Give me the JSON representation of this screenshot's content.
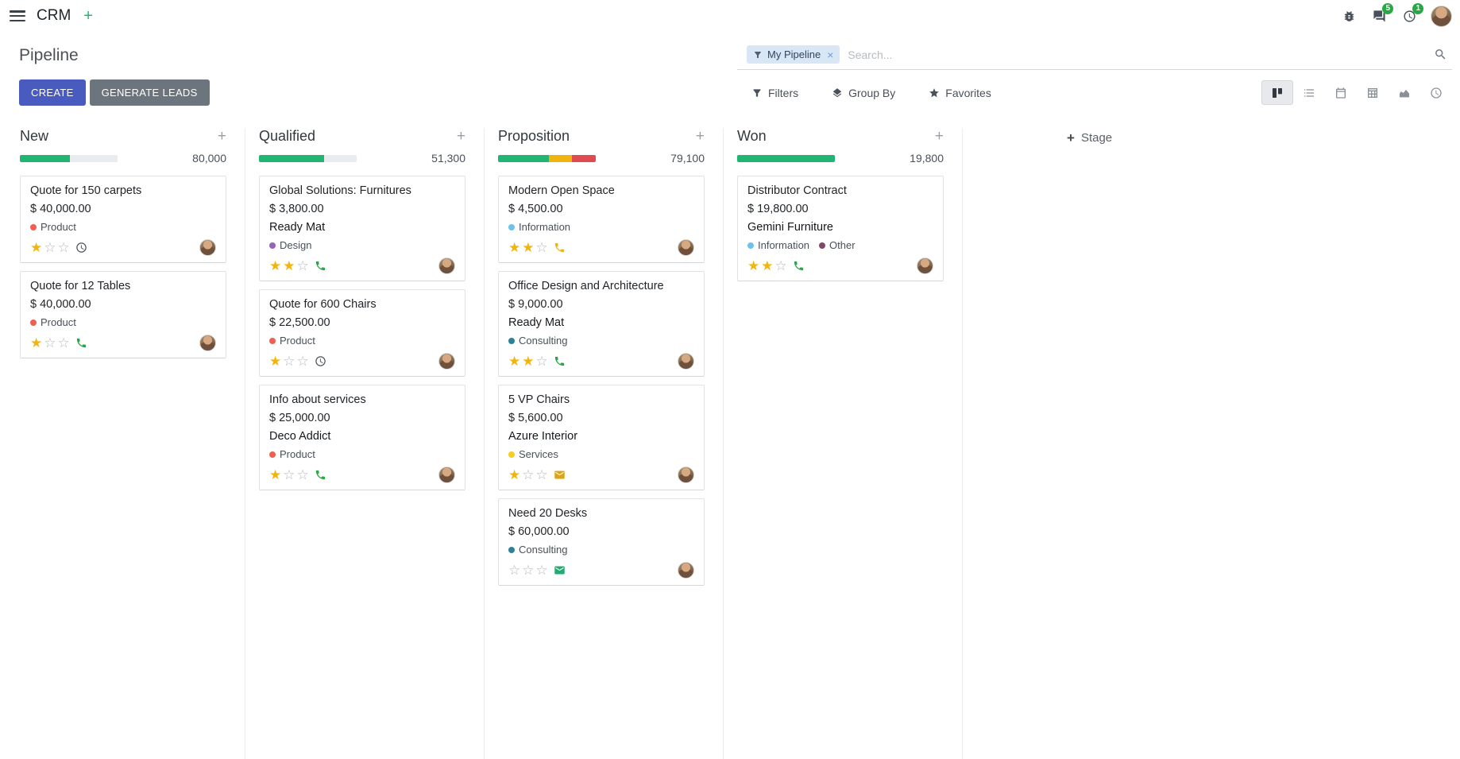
{
  "colors": {
    "primary": "#4a5bc0",
    "secondary": "#6c757d",
    "badge": "#28a745",
    "star_filled": "#f2b50d",
    "star_empty": "#b4b9bf"
  },
  "icons": {
    "plus": "+",
    "close": "×",
    "star_filled": "★",
    "star_empty": "☆"
  },
  "navbar": {
    "app_name": "CRM",
    "messages_badge": "5",
    "activities_badge": "1"
  },
  "control_panel": {
    "title": "Pipeline",
    "search_facet": "My Pipeline",
    "search_placeholder": "Search...",
    "create_label": "CREATE",
    "generate_leads_label": "GENERATE LEADS",
    "filters_label": "Filters",
    "group_by_label": "Group By",
    "favorites_label": "Favorites"
  },
  "board": {
    "add_stage_label": "Stage",
    "columns": [
      {
        "name": "New",
        "total": "80,000",
        "progress": [
          {
            "color": "#21b573",
            "pct": 51
          },
          {
            "color": "#e9ecef",
            "pct": 49
          }
        ],
        "cards": [
          {
            "title": "Quote for 150 carpets",
            "amount": "$ 40,000.00",
            "tags": [
              {
                "label": "Product",
                "color": "#f06050"
              }
            ],
            "stars": 1,
            "activity": {
              "type": "clock",
              "color": "#495057"
            }
          },
          {
            "title": "Quote for 12 Tables",
            "amount": "$ 40,000.00",
            "tags": [
              {
                "label": "Product",
                "color": "#f06050"
              }
            ],
            "stars": 1,
            "activity": {
              "type": "phone",
              "color": "#28a745"
            }
          }
        ]
      },
      {
        "name": "Qualified",
        "total": "51,300",
        "progress": [
          {
            "color": "#21b573",
            "pct": 67
          },
          {
            "color": "#e9ecef",
            "pct": 33
          }
        ],
        "cards": [
          {
            "title": "Global Solutions: Furnitures",
            "amount": "$ 3,800.00",
            "company": "Ready Mat",
            "tags": [
              {
                "label": "Design",
                "color": "#9365b8"
              }
            ],
            "stars": 2,
            "activity": {
              "type": "phone",
              "color": "#28a745"
            }
          },
          {
            "title": "Quote for 600 Chairs",
            "amount": "$ 22,500.00",
            "tags": [
              {
                "label": "Product",
                "color": "#f06050"
              }
            ],
            "stars": 1,
            "activity": {
              "type": "clock",
              "color": "#495057"
            }
          },
          {
            "title": "Info about services",
            "amount": "$ 25,000.00",
            "company": "Deco Addict",
            "tags": [
              {
                "label": "Product",
                "color": "#f06050"
              }
            ],
            "stars": 1,
            "activity": {
              "type": "phone",
              "color": "#28a745"
            }
          }
        ]
      },
      {
        "name": "Proposition",
        "total": "79,100",
        "progress": [
          {
            "color": "#21b573",
            "pct": 52
          },
          {
            "color": "#efb40e",
            "pct": 24
          },
          {
            "color": "#e04b52",
            "pct": 24
          }
        ],
        "cards": [
          {
            "title": "Modern Open Space",
            "amount": "$ 4,500.00",
            "tags": [
              {
                "label": "Information",
                "color": "#6cc1ed"
              }
            ],
            "stars": 2,
            "activity": {
              "type": "phone",
              "color": "#efb40e"
            }
          },
          {
            "title": "Office Design and Architecture",
            "amount": "$ 9,000.00",
            "company": "Ready Mat",
            "tags": [
              {
                "label": "Consulting",
                "color": "#2c8397"
              }
            ],
            "stars": 2,
            "activity": {
              "type": "phone",
              "color": "#28a745"
            }
          },
          {
            "title": "5 VP Chairs",
            "amount": "$ 5,600.00",
            "company": "Azure Interior",
            "tags": [
              {
                "label": "Services",
                "color": "#f7cd1f"
              }
            ],
            "stars": 1,
            "activity": {
              "type": "envelope",
              "color": "#e0a312"
            }
          },
          {
            "title": "Need 20 Desks",
            "amount": "$ 60,000.00",
            "tags": [
              {
                "label": "Consulting",
                "color": "#2c8397"
              }
            ],
            "stars": 0,
            "activity": {
              "type": "envelope",
              "color": "#21ac74"
            }
          }
        ]
      },
      {
        "name": "Won",
        "total": "19,800",
        "progress": [
          {
            "color": "#21b573",
            "pct": 100
          }
        ],
        "cards": [
          {
            "title": "Distributor Contract",
            "amount": "$ 19,800.00",
            "company": "Gemini Furniture",
            "tags": [
              {
                "label": "Information",
                "color": "#6cc1ed"
              },
              {
                "label": "Other",
                "color": "#814968"
              }
            ],
            "stars": 2,
            "activity": {
              "type": "phone",
              "color": "#28a745"
            }
          }
        ]
      }
    ]
  }
}
